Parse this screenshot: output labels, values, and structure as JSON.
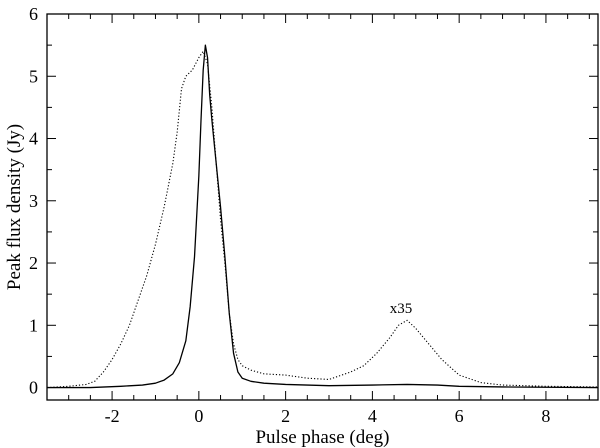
{
  "chart_data": {
    "type": "line",
    "title": "",
    "xlabel": "Pulse phase (deg)",
    "ylabel": "Peak flux density (Jy)",
    "xlim": [
      -3.5,
      9.2
    ],
    "ylim": [
      -0.2,
      6.0
    ],
    "x_ticks": [
      -2,
      0,
      2,
      4,
      6,
      8
    ],
    "x_tick_labels": [
      "-2",
      "0",
      "2",
      "4",
      "6",
      "8"
    ],
    "y_ticks": [
      0,
      1,
      2,
      3,
      4,
      5,
      6
    ],
    "y_tick_labels": [
      "0",
      "1",
      "2",
      "3",
      "4",
      "5",
      "6"
    ],
    "x_minor_step": 0.5,
    "y_minor_step": 0.5,
    "grid": false,
    "legend": "none",
    "annotations": [
      {
        "text": "x35",
        "x": 4.4,
        "y": 1.2
      }
    ],
    "series": [
      {
        "style": "solid",
        "color": "#000000",
        "points": [
          [
            -3.5,
            0.0
          ],
          [
            -2.5,
            0.0
          ],
          [
            -1.8,
            0.02
          ],
          [
            -1.3,
            0.04
          ],
          [
            -1.0,
            0.07
          ],
          [
            -0.8,
            0.12
          ],
          [
            -0.6,
            0.22
          ],
          [
            -0.45,
            0.4
          ],
          [
            -0.3,
            0.75
          ],
          [
            -0.2,
            1.3
          ],
          [
            -0.1,
            2.1
          ],
          [
            0.0,
            3.4
          ],
          [
            0.05,
            4.3
          ],
          [
            0.1,
            5.1
          ],
          [
            0.15,
            5.5
          ],
          [
            0.2,
            5.3
          ],
          [
            0.25,
            4.7
          ],
          [
            0.3,
            4.3
          ],
          [
            0.4,
            3.6
          ],
          [
            0.5,
            2.9
          ],
          [
            0.6,
            2.1
          ],
          [
            0.7,
            1.2
          ],
          [
            0.8,
            0.55
          ],
          [
            0.9,
            0.25
          ],
          [
            1.0,
            0.15
          ],
          [
            1.2,
            0.1
          ],
          [
            1.5,
            0.07
          ],
          [
            2.0,
            0.05
          ],
          [
            3.0,
            0.03
          ],
          [
            4.0,
            0.04
          ],
          [
            4.8,
            0.05
          ],
          [
            5.5,
            0.04
          ],
          [
            6.0,
            0.02
          ],
          [
            7.0,
            0.01
          ],
          [
            9.2,
            0.0
          ]
        ]
      },
      {
        "style": "dotted",
        "color": "#000000",
        "points": [
          [
            -3.5,
            0.0
          ],
          [
            -3.0,
            0.02
          ],
          [
            -2.6,
            0.05
          ],
          [
            -2.4,
            0.1
          ],
          [
            -2.2,
            0.25
          ],
          [
            -2.0,
            0.45
          ],
          [
            -1.8,
            0.7
          ],
          [
            -1.6,
            1.0
          ],
          [
            -1.4,
            1.4
          ],
          [
            -1.2,
            1.8
          ],
          [
            -1.0,
            2.3
          ],
          [
            -0.8,
            2.9
          ],
          [
            -0.6,
            3.6
          ],
          [
            -0.5,
            4.1
          ],
          [
            -0.4,
            4.8
          ],
          [
            -0.3,
            5.0
          ],
          [
            -0.15,
            5.1
          ],
          [
            0.0,
            5.3
          ],
          [
            0.1,
            5.4
          ],
          [
            0.2,
            5.2
          ],
          [
            0.3,
            4.5
          ],
          [
            0.4,
            3.6
          ],
          [
            0.5,
            2.7
          ],
          [
            0.6,
            2.0
          ],
          [
            0.7,
            1.2
          ],
          [
            0.8,
            0.7
          ],
          [
            0.9,
            0.45
          ],
          [
            1.0,
            0.35
          ],
          [
            1.2,
            0.28
          ],
          [
            1.5,
            0.22
          ],
          [
            2.0,
            0.2
          ],
          [
            2.5,
            0.15
          ],
          [
            3.0,
            0.13
          ],
          [
            3.5,
            0.25
          ],
          [
            3.8,
            0.35
          ],
          [
            4.1,
            0.55
          ],
          [
            4.4,
            0.8
          ],
          [
            4.6,
            1.0
          ],
          [
            4.8,
            1.08
          ],
          [
            5.0,
            0.95
          ],
          [
            5.3,
            0.7
          ],
          [
            5.6,
            0.45
          ],
          [
            6.0,
            0.2
          ],
          [
            6.5,
            0.08
          ],
          [
            7.0,
            0.04
          ],
          [
            8.0,
            0.02
          ],
          [
            9.2,
            0.01
          ]
        ]
      }
    ]
  }
}
